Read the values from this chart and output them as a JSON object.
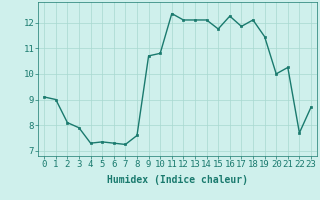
{
  "x": [
    0,
    1,
    2,
    3,
    4,
    5,
    6,
    7,
    8,
    9,
    10,
    11,
    12,
    13,
    14,
    15,
    16,
    17,
    18,
    19,
    20,
    21,
    22,
    23
  ],
  "y": [
    9.1,
    9.0,
    8.1,
    7.9,
    7.3,
    7.35,
    7.3,
    7.25,
    7.6,
    10.7,
    10.8,
    12.35,
    12.1,
    12.1,
    12.1,
    11.75,
    12.25,
    11.85,
    12.1,
    11.45,
    10.0,
    10.25,
    7.7,
    8.7
  ],
  "line_color": "#1a7a6e",
  "marker_color": "#1a7a6e",
  "bg_color": "#cff0ec",
  "grid_color": "#a8d8d0",
  "xlabel": "Humidex (Indice chaleur)",
  "ylim": [
    6.8,
    12.8
  ],
  "xlim": [
    -0.5,
    23.5
  ],
  "yticks": [
    7,
    8,
    9,
    10,
    11,
    12
  ],
  "xticks": [
    0,
    1,
    2,
    3,
    4,
    5,
    6,
    7,
    8,
    9,
    10,
    11,
    12,
    13,
    14,
    15,
    16,
    17,
    18,
    19,
    20,
    21,
    22,
    23
  ],
  "label_color": "#1a7a6e",
  "tick_color": "#1a7a6e",
  "font_size": 6.5,
  "xlabel_fontsize": 7.0,
  "linewidth": 1.0,
  "markersize": 2.0
}
